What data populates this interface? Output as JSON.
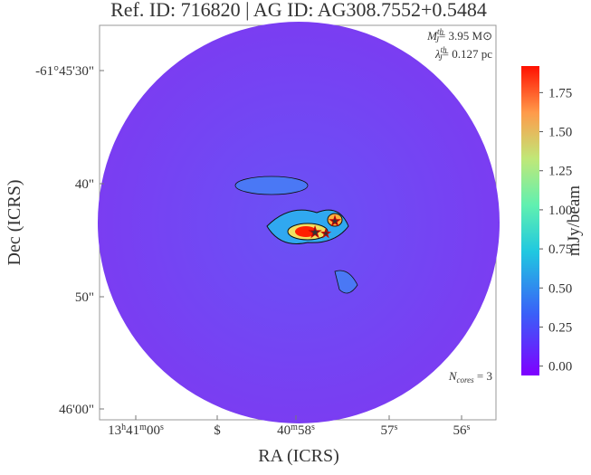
{
  "chart_data": {
    "type": "image",
    "title": "Ref. ID: 716820 | AG ID: AG308.7552+0.5484",
    "x_label": "RA (ICRS)",
    "y_label": "Dec (ICRS)",
    "x_tick_labels": [
      {
        "main": "13",
        "sup": "h"
      },
      {
        "main": "41",
        "sup": "m"
      },
      {
        "main": "00",
        "sup": "s"
      }
    ],
    "x_tick_labels_rest": [
      "$",
      "40",
      "m",
      "58",
      "s",
      "57",
      "s",
      "56",
      "s"
    ],
    "y_tick_labels": [
      "-61°45'30\"",
      "40\"",
      "50\"",
      "46'00\""
    ],
    "annotations": [
      {
        "symbol": "M",
        "sup": "th",
        "sub": "J",
        "text": "= 3.95 M",
        "unit": "⊙"
      },
      {
        "symbol": "λ",
        "sup": "th",
        "sub": "J",
        "text": "= 0.127 pc"
      },
      {
        "symbol": "N",
        "sub": "cores",
        "text": " = 3"
      }
    ],
    "colorbar": {
      "label": "mJy/beam",
      "lim": [
        -0.06,
        1.92
      ],
      "ticks": [
        {
          "value": 0,
          "label": "0.00"
        },
        {
          "value": 0.25,
          "label": "0.25"
        },
        {
          "value": 0.5,
          "label": "0.50"
        },
        {
          "value": 0.75,
          "label": "0.75"
        },
        {
          "value": 1,
          "label": "1.00"
        },
        {
          "value": 1.25,
          "label": "1.25"
        },
        {
          "value": 1.5,
          "label": "1.50"
        },
        {
          "value": 1.75,
          "label": "1.75"
        }
      ]
    }
  }
}
